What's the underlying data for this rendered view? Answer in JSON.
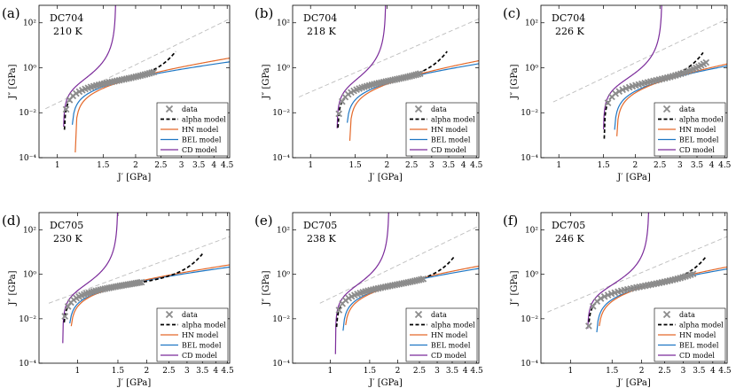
{
  "figure": {
    "legend_labels": [
      "data",
      "alpha model",
      "HN model",
      "BEL model",
      "CD model"
    ],
    "colors": {
      "data": "#8c8c8c",
      "alpha": "#000000",
      "hn": "#e4692a",
      "bel": "#1f77c4",
      "cd": "#7b2b9a",
      "ref": "#bdbdbd"
    }
  },
  "chart_data": [
    {
      "type": "line",
      "panel": "(a)",
      "sample": "DC704",
      "temperature": "210 K",
      "xlabel": "J′ [GPa]",
      "ylabel": "J″ [GPa]",
      "x_scale": "log",
      "y_scale": "log",
      "xlim": [
        0.85,
        4.6
      ],
      "ylim": [
        0.0001,
        600
      ],
      "xticks": [
        "1",
        "1.5",
        "2",
        "2.5",
        "3",
        "3.5",
        "4",
        "4.5"
      ],
      "xtick_values": [
        1,
        1.5,
        2,
        2.5,
        3,
        3.5,
        4,
        4.5
      ],
      "yticks": [
        "10²",
        "10⁰",
        "10⁻²",
        "10⁻⁴"
      ],
      "ytick_values": [
        100,
        1,
        0.01,
        0.0001
      ],
      "legend_position": "bottom-right",
      "x0": 0.93,
      "data_x_max": 2.35,
      "alpha_x_max": 2.85,
      "hn_slope": 3.2,
      "bel_slope": 2.4,
      "cd_x_max": 1.68,
      "ref_start": [
        0.9,
        0.015
      ],
      "ref_end": [
        4.6,
        150
      ]
    },
    {
      "type": "line",
      "panel": "(b)",
      "sample": "DC704",
      "temperature": "218 K",
      "xlabel": "J′ [GPa]",
      "ylabel": "J″ [GPa]",
      "x_scale": "log",
      "y_scale": "log",
      "xlim": [
        0.85,
        4.6
      ],
      "ylim": [
        0.0001,
        600
      ],
      "xticks": [
        "1",
        "1.5",
        "2",
        "2.5",
        "3",
        "3.5",
        "4",
        "4.5"
      ],
      "xtick_values": [
        1,
        1.5,
        2,
        2.5,
        3,
        3.5,
        4,
        4.5
      ],
      "yticks": [
        "10²",
        "10⁰",
        "10⁻²",
        "10⁻⁴"
      ],
      "ytick_values": [
        100,
        1,
        0.01,
        0.0001
      ],
      "legend_position": "bottom-right",
      "x0": 1.12,
      "data_x_max": 2.7,
      "alpha_x_max": 3.45,
      "hn_slope": 3.4,
      "bel_slope": 2.6,
      "cd_x_max": 1.98,
      "ref_start": [
        0.9,
        0.05
      ],
      "ref_end": [
        4.6,
        150
      ]
    },
    {
      "type": "line",
      "panel": "(c)",
      "sample": "DC704",
      "temperature": "226 K",
      "xlabel": "J′ [GPa]",
      "ylabel": "J″ [GPa]",
      "x_scale": "log",
      "y_scale": "log",
      "xlim": [
        0.85,
        4.6
      ],
      "ylim": [
        0.0001,
        600
      ],
      "xticks": [
        "1",
        "1.5",
        "2",
        "2.5",
        "3",
        "3.5",
        "4",
        "4.5"
      ],
      "xtick_values": [
        1,
        1.5,
        2,
        2.5,
        3,
        3.5,
        4,
        4.5
      ],
      "yticks": [
        "10²",
        "10⁰",
        "10⁻²",
        "10⁻⁴"
      ],
      "ytick_values": [
        100,
        1,
        0.01,
        0.0001
      ],
      "legend_position": "bottom-right",
      "x0": 1.32,
      "data_x_max": 3.8,
      "alpha_x_max": 3.7,
      "hn_slope": 3.5,
      "bel_slope": 2.8,
      "cd_x_max": 2.55,
      "ref_start": [
        0.95,
        0.03
      ],
      "ref_end": [
        4.6,
        150
      ]
    },
    {
      "type": "line",
      "panel": "(d)",
      "sample": "DC705",
      "temperature": "230 K",
      "xlabel": "J′ [GPa]",
      "ylabel": "J″ [GPa]",
      "x_scale": "log",
      "y_scale": "log",
      "xlim": [
        0.68,
        4.6
      ],
      "ylim": [
        0.0001,
        600
      ],
      "xticks": [
        "1",
        "1.5",
        "2",
        "2.5",
        "3",
        "3.5",
        "4",
        "4.5"
      ],
      "xtick_values": [
        1,
        1.5,
        2,
        2.5,
        3,
        3.5,
        4,
        4.5
      ],
      "yticks": [
        "10²",
        "10⁰",
        "10⁻²",
        "10⁻⁴"
      ],
      "ytick_values": [
        100,
        1,
        0.01,
        0.0001
      ],
      "legend_position": "bottom-right",
      "x0": 0.76,
      "data_x_max": 1.9,
      "alpha_x_max": 3.5,
      "hn_slope": 2.7,
      "bel_slope": 2.2,
      "cd_x_max": 1.5,
      "ref_start": [
        0.75,
        0.05
      ],
      "ref_end": [
        4.6,
        50
      ]
    },
    {
      "type": "line",
      "panel": "(e)",
      "sample": "DC705",
      "temperature": "238 K",
      "xlabel": "J′ [GPa]",
      "ylabel": "J″ [GPa]",
      "x_scale": "log",
      "y_scale": "log",
      "xlim": [
        0.68,
        4.6
      ],
      "ylim": [
        0.0001,
        600
      ],
      "xticks": [
        "1",
        "1.5",
        "2",
        "2.5",
        "3",
        "3.5",
        "4",
        "4.5"
      ],
      "xtick_values": [
        1,
        1.5,
        2,
        2.5,
        3,
        3.5,
        4,
        4.5
      ],
      "yticks": [
        "10²",
        "10⁰",
        "10⁻²",
        "10⁻⁴"
      ],
      "ytick_values": [
        100,
        1,
        0.01,
        0.0001
      ],
      "legend_position": "bottom-right",
      "x0": 0.93,
      "data_x_max": 2.6,
      "alpha_x_max": 3.6,
      "hn_slope": 3.0,
      "bel_slope": 2.4,
      "cd_x_max": 1.83,
      "ref_start": [
        0.9,
        0.05
      ],
      "ref_end": [
        4.6,
        150
      ]
    },
    {
      "type": "line",
      "panel": "(f)",
      "sample": "DC705",
      "temperature": "246 K",
      "xlabel": "J′ [GPa]",
      "ylabel": "J″ [GPa]",
      "x_scale": "log",
      "y_scale": "log",
      "xlim": [
        0.75,
        4.6
      ],
      "ylim": [
        0.0001,
        600
      ],
      "xticks": [
        "1",
        "1.5",
        "2",
        "2.5",
        "3",
        "3.5",
        "4",
        "4.5"
      ],
      "xtick_values": [
        1,
        1.5,
        2,
        2.5,
        3,
        3.5,
        4,
        4.5
      ],
      "yticks": [
        "10²",
        "10⁰",
        "10⁻²",
        "10⁻⁴"
      ],
      "ytick_values": [
        100,
        1,
        0.01,
        0.0001
      ],
      "legend_position": "bottom-right",
      "x0": 1.04,
      "data_x_max": 3.3,
      "alpha_x_max": 3.75,
      "hn_slope": 3.2,
      "bel_slope": 2.6,
      "cd_x_max": 2.15,
      "ref_start": [
        0.8,
        0.02
      ],
      "ref_end": [
        4.6,
        50
      ]
    }
  ]
}
